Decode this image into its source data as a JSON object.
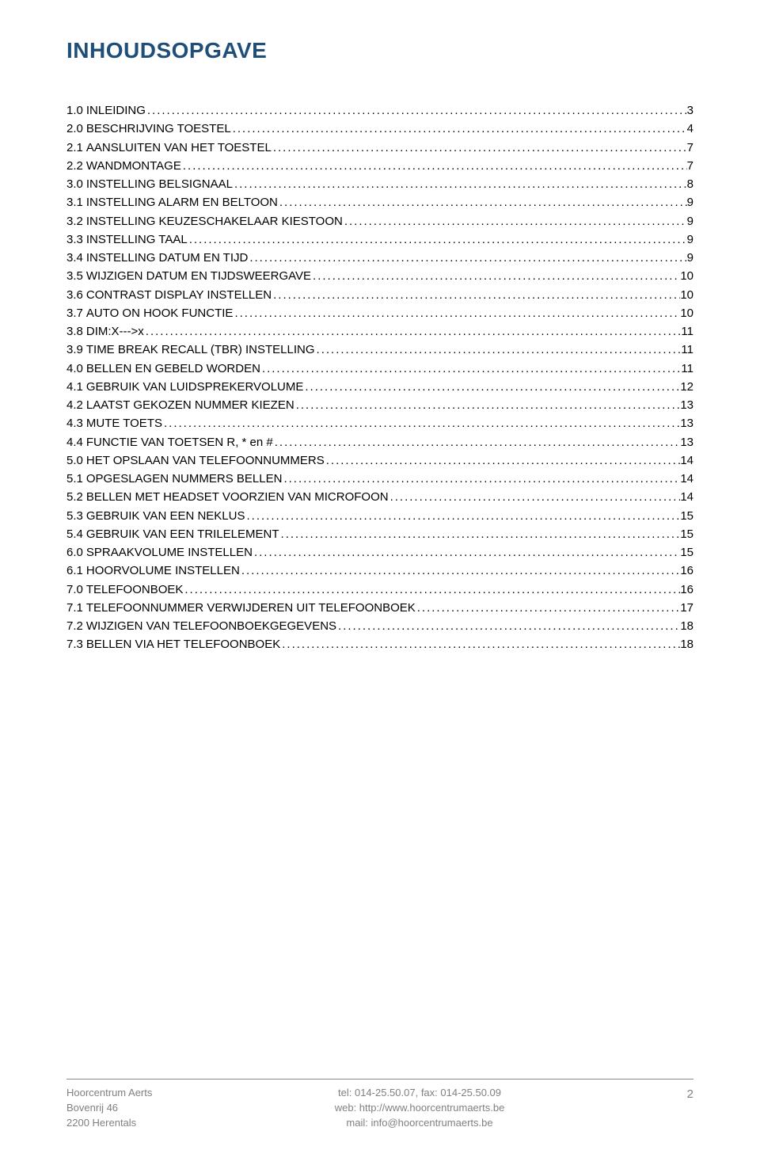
{
  "title": "INHOUDSOPGAVE",
  "title_color": "#1f4e79",
  "text_color": "#000000",
  "footer_color": "#808080",
  "background_color": "#ffffff",
  "toc": [
    {
      "num": "1.0",
      "label": "INLEIDING",
      "page": "3"
    },
    {
      "num": "2.0",
      "label": "BESCHRIJVING TOESTEL",
      "page": "4"
    },
    {
      "num": "2.1",
      "label": "AANSLUITEN VAN HET TOESTEL",
      "page": "7"
    },
    {
      "num": "2.2",
      "label": "WANDMONTAGE",
      "page": "7"
    },
    {
      "num": "3.0",
      "label": "INSTELLING BELSIGNAAL",
      "page": "8"
    },
    {
      "num": "3.1",
      "label": "INSTELLING ALARM EN BELTOON",
      "page": "9"
    },
    {
      "num": "3.2",
      "label": "INSTELLING KEUZESCHAKELAAR KIESTOON",
      "page": "9"
    },
    {
      "num": "3.3",
      "label": "INSTELLING TAAL",
      "page": "9"
    },
    {
      "num": "3.4",
      "label": "INSTELLING DATUM EN TIJD",
      "page": "9"
    },
    {
      "num": "3.5",
      "label": "WIJZIGEN DATUM EN TIJDSWEERGAVE",
      "page": "10"
    },
    {
      "num": "3.6",
      "label": "CONTRAST DISPLAY INSTELLEN",
      "page": "10"
    },
    {
      "num": "3.7",
      "label": "AUTO ON HOOK FUNCTIE",
      "page": "10"
    },
    {
      "num": "3.8",
      "label": "DIM:X--->x",
      "page": "11"
    },
    {
      "num": "3.9",
      "label": "TIME BREAK RECALL (TBR) INSTELLING",
      "page": "11"
    },
    {
      "num": "4.0",
      "label": "BELLEN EN GEBELD WORDEN",
      "page": "11"
    },
    {
      "num": "4.1",
      "label": "GEBRUIK VAN LUIDSPREKERVOLUME",
      "page": "12"
    },
    {
      "num": "4.2",
      "label": "LAATST GEKOZEN NUMMER KIEZEN",
      "page": "13"
    },
    {
      "num": "4.3",
      "label": "MUTE TOETS",
      "page": "13"
    },
    {
      "num": "4.4",
      "label": "FUNCTIE VAN TOETSEN R, * en #",
      "page": "13"
    },
    {
      "num": "5.0",
      "label": "HET OPSLAAN VAN TELEFOONNUMMERS",
      "page": "14"
    },
    {
      "num": "5.1",
      "label": "OPGESLAGEN NUMMERS BELLEN",
      "page": "14"
    },
    {
      "num": "5.2",
      "label": "BELLEN MET HEADSET VOORZIEN VAN MICROFOON",
      "page": "14"
    },
    {
      "num": "5.3",
      "label": "GEBRUIK VAN EEN NEKLUS",
      "page": "15"
    },
    {
      "num": "5.4",
      "label": "GEBRUIK VAN EEN TRILELEMENT",
      "page": "15"
    },
    {
      "num": "6.0",
      "label": "SPRAAKVOLUME INSTELLEN",
      "page": "15"
    },
    {
      "num": "6.1",
      "label": "HOORVOLUME INSTELLEN",
      "page": "16"
    },
    {
      "num": "7.0",
      "label": "TELEFOONBOEK",
      "page": "16"
    },
    {
      "num": "7.1",
      "label": "TELEFOONNUMMER VERWIJDEREN UIT TELEFOONBOEK",
      "page": "17"
    },
    {
      "num": "7.2",
      "label": "WIJZIGEN VAN TELEFOONBOEKGEGEVENS",
      "page": "18"
    },
    {
      "num": "7.3",
      "label": "BELLEN VIA HET TELEFOONBOEK",
      "page": "18"
    }
  ],
  "footer": {
    "left_line1": "Hoorcentrum Aerts",
    "left_line2": "Bovenrij 46",
    "left_line3": "2200 Herentals",
    "center_line1": "tel: 014-25.50.07, fax: 014-25.50.09",
    "center_line2": "web: http://www.hoorcentrumaerts.be",
    "center_line3": "mail: info@hoorcentrumaerts.be",
    "page_number": "2"
  }
}
